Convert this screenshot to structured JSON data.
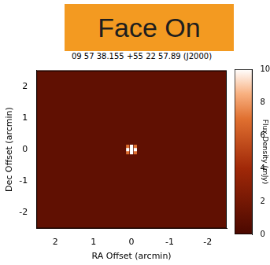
{
  "header": "Face On",
  "chart_data": {
    "type": "heatmap",
    "title": "09 57 38.155 +55 22 57.89 (J2000)",
    "x_label": "RA Offset (arcmin)",
    "y_label": "Dec Offset (arcmin)",
    "xlim": [
      2.5,
      -2.5
    ],
    "ylim": [
      -2.5,
      2.5
    ],
    "xticks": [
      2,
      1,
      0,
      -1,
      -2
    ],
    "yticks": [
      -2,
      -1,
      0,
      1,
      2
    ],
    "background": 1,
    "cells": [
      {
        "x": -0.1,
        "y": -0.1,
        "value": 7
      },
      {
        "x": 0,
        "y": -0.1,
        "value": 10
      },
      {
        "x": 0.1,
        "y": -0.1,
        "value": 7
      },
      {
        "x": -0.1,
        "y": 0,
        "value": 10
      },
      {
        "x": 0,
        "y": 0,
        "value": 10
      },
      {
        "x": 0.1,
        "y": 0,
        "value": 10
      },
      {
        "x": -0.1,
        "y": 0.1,
        "value": 7
      },
      {
        "x": 0,
        "y": 0.1,
        "value": 10
      },
      {
        "x": 0.1,
        "y": 0.1,
        "value": 7
      }
    ],
    "colorbar": {
      "range": [
        0,
        10
      ],
      "ticks": [
        0,
        2,
        4,
        6,
        8,
        10
      ],
      "label": "Flux Density (mJy)"
    }
  }
}
